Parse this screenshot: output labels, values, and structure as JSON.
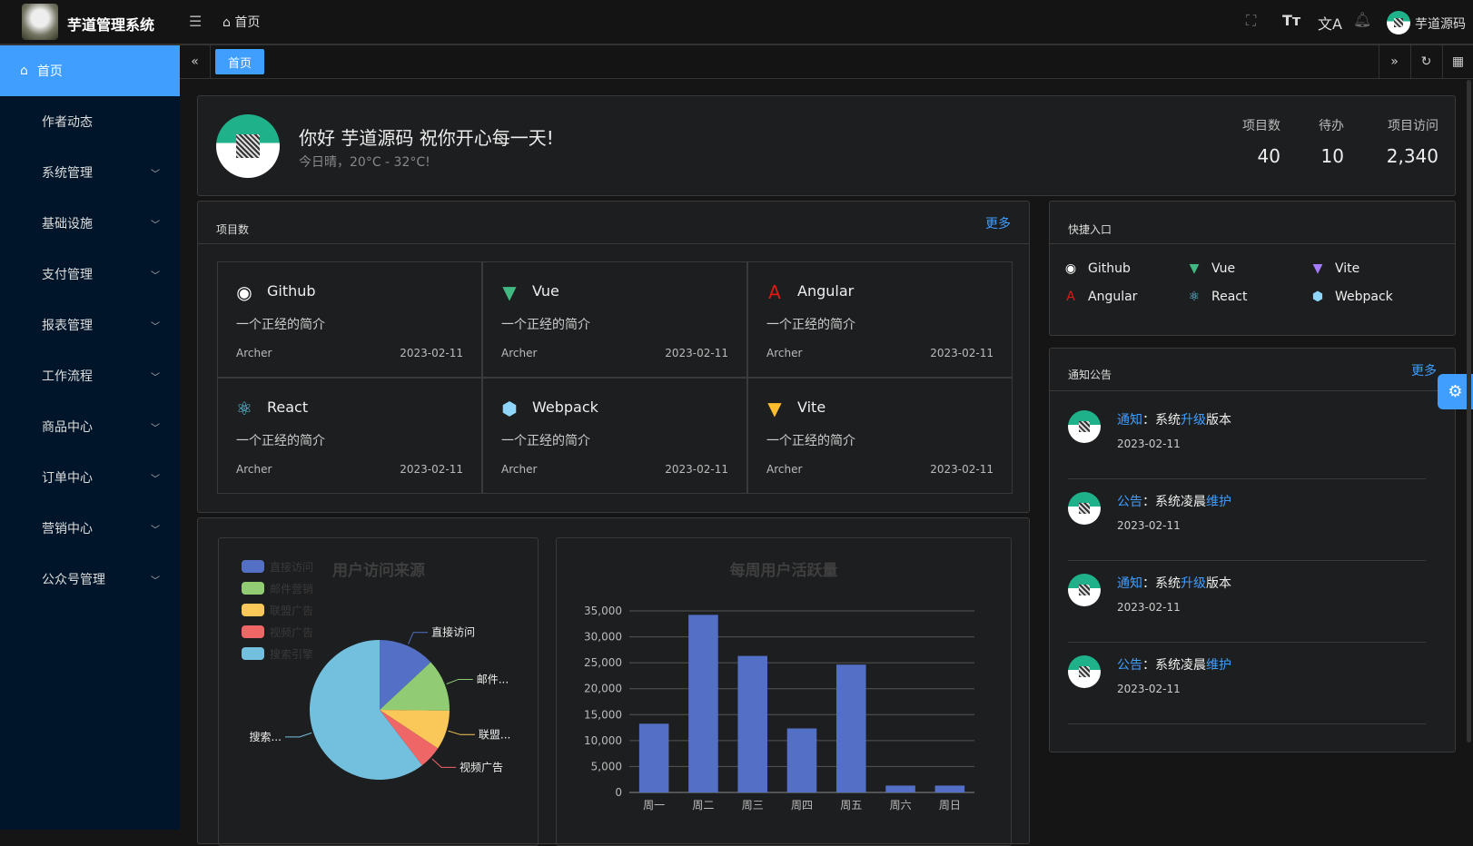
{
  "header": {
    "app_title": "芋道管理系统",
    "breadcrumb": "首页",
    "user_name": "芋道源码",
    "icons": [
      "menu-fold-icon",
      "home-icon",
      "fullscreen-icon",
      "font-size-icon",
      "translate-icon",
      "bell-icon"
    ]
  },
  "sidebar": {
    "items": [
      {
        "label": "首页",
        "active": true
      },
      {
        "label": "作者动态"
      },
      {
        "label": "系统管理",
        "has_children": true
      },
      {
        "label": "基础设施",
        "has_children": true
      },
      {
        "label": "支付管理",
        "has_children": true
      },
      {
        "label": "报表管理",
        "has_children": true
      },
      {
        "label": "工作流程",
        "has_children": true
      },
      {
        "label": "商品中心",
        "has_children": true
      },
      {
        "label": "订单中心",
        "has_children": true
      },
      {
        "label": "营销中心",
        "has_children": true
      },
      {
        "label": "公众号管理",
        "has_children": true
      }
    ]
  },
  "tabs": {
    "items": [
      "首页"
    ]
  },
  "welcome": {
    "greeting": "你好 芋道源码 祝你开心每一天!",
    "weather": "今日晴，20°C - 32°C!",
    "stats": [
      {
        "label": "项目数",
        "value": "40"
      },
      {
        "label": "待办",
        "value": "10"
      },
      {
        "label": "项目访问",
        "value": "2,340"
      }
    ]
  },
  "projects": {
    "title": "项目数",
    "more": "更多",
    "items": [
      {
        "name": "Github",
        "desc": "一个正经的简介",
        "author": "Archer",
        "date": "2023-02-11",
        "icon": "github-icon",
        "color": "#ffffff"
      },
      {
        "name": "Vue",
        "desc": "一个正经的简介",
        "author": "Archer",
        "date": "2023-02-11",
        "icon": "vue-icon",
        "color": "#42b883"
      },
      {
        "name": "Angular",
        "desc": "一个正经的简介",
        "author": "Archer",
        "date": "2023-02-11",
        "icon": "angular-icon",
        "color": "#dd1b16"
      },
      {
        "name": "React",
        "desc": "一个正经的简介",
        "author": "Archer",
        "date": "2023-02-11",
        "icon": "react-icon",
        "color": "#61dafb"
      },
      {
        "name": "Webpack",
        "desc": "一个正经的简介",
        "author": "Archer",
        "date": "2023-02-11",
        "icon": "webpack-icon",
        "color": "#8ed6fb"
      },
      {
        "name": "Vite",
        "desc": "一个正经的简介",
        "author": "Archer",
        "date": "2023-02-11",
        "icon": "vite-icon",
        "color": "#ffbd2e"
      }
    ]
  },
  "shortcuts": {
    "title": "快捷入口",
    "items": [
      {
        "name": "Github",
        "color": "#ffffff"
      },
      {
        "name": "Vue",
        "color": "#42b883"
      },
      {
        "name": "Vite",
        "color": "#a67cff"
      },
      {
        "name": "Angular",
        "color": "#dd1b16"
      },
      {
        "name": "React",
        "color": "#61dafb"
      },
      {
        "name": "Webpack",
        "color": "#8ed6fb"
      }
    ]
  },
  "notices": {
    "title": "通知公告",
    "more": "更多",
    "items": [
      {
        "type": "通知",
        "pre": "：系统",
        "hl": "升级",
        "post": "版本",
        "date": "2023-02-11"
      },
      {
        "type": "公告",
        "pre": "：系统凌晨",
        "hl": "维护",
        "post": "",
        "date": "2023-02-11"
      },
      {
        "type": "通知",
        "pre": "：系统",
        "hl": "升级",
        "post": "版本",
        "date": "2023-02-11"
      },
      {
        "type": "公告",
        "pre": "：系统凌晨",
        "hl": "维护",
        "post": "",
        "date": "2023-02-11"
      }
    ]
  },
  "chart_data": [
    {
      "type": "pie",
      "title": "用户访问来源",
      "legend": "top-left",
      "labels": [
        "直接访问",
        "邮件营销",
        "联盟广告",
        "视频广告",
        "搜索引擎"
      ],
      "slice_labels": [
        "直接访问",
        "邮件...",
        "联盟...",
        "视频广告",
        "搜索..."
      ],
      "values": [
        335,
        310,
        234,
        135,
        1548
      ],
      "colors": [
        "#5470c6",
        "#91cc75",
        "#fac858",
        "#ee6666",
        "#73c0de"
      ]
    },
    {
      "type": "bar",
      "title": "每周用户活跃量",
      "categories": [
        "周一",
        "周二",
        "周三",
        "周四",
        "周五",
        "周六",
        "周日"
      ],
      "values": [
        13253,
        34235,
        26321,
        12340,
        24643,
        1322,
        1324
      ],
      "ylim": [
        0,
        35000
      ],
      "yticks": [
        "0",
        "5,000",
        "10,000",
        "15,000",
        "20,000",
        "25,000",
        "30,000",
        "35,000"
      ],
      "grid": true,
      "color": "#5470c6"
    }
  ]
}
